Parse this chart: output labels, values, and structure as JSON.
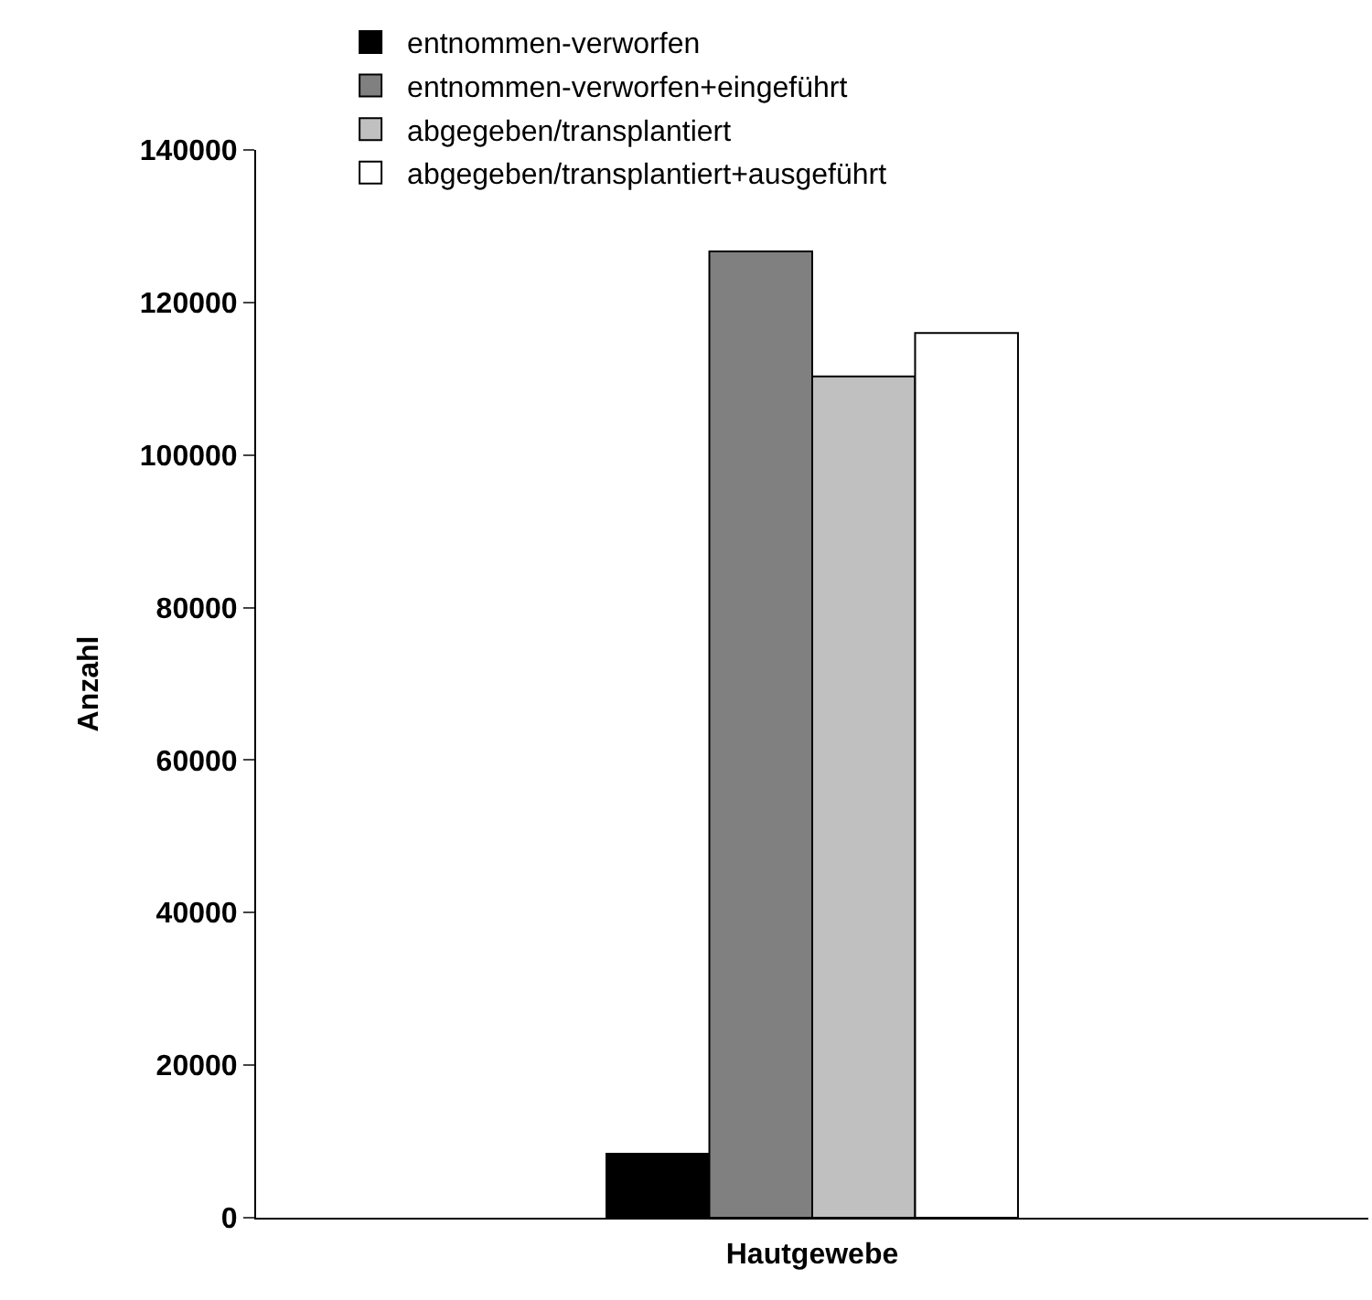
{
  "chart_data": {
    "type": "bar",
    "xlabel": "Hautgewebe",
    "ylabel": "Anzahl",
    "categories": [
      null
    ],
    "series": [
      {
        "name": "entnommen-verworfen",
        "color": "#000000",
        "values": [
          8400
        ]
      },
      {
        "name": "entnommen-verworfen+eingeführt",
        "color": "#808080",
        "values": [
          126700
        ]
      },
      {
        "name": "abgegeben/transplantiert",
        "color": "#c0c0c0",
        "values": [
          110300
        ]
      },
      {
        "name": "abgegeben/transplantiert+ausgeführt",
        "color": "#ffffff",
        "values": [
          116000
        ]
      }
    ],
    "ylim": [
      0,
      140000
    ],
    "yticks": [
      0,
      20000,
      40000,
      60000,
      80000,
      100000,
      120000,
      140000
    ],
    "legend": "top left"
  }
}
